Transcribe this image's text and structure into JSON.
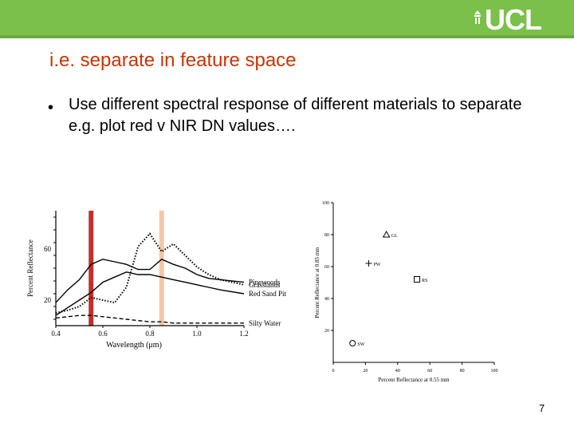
{
  "header": {
    "logo_text": "UCL",
    "colors": {
      "bar": "#7ac04a",
      "title": "#cc3300"
    }
  },
  "slide": {
    "title": "i.e. separate in feature space",
    "bullet": "Use different spectral response of different materials to separate e.g. plot red v NIR DN values….",
    "page_number": "7"
  },
  "chart_data": [
    {
      "type": "line",
      "xlabel": "Wavelength (μm)",
      "ylabel": "Percent Reflectance",
      "x_ticks": [
        "0.4",
        "0.6",
        "0.8",
        "1.0",
        "1.2"
      ],
      "y_ticks": [
        "20",
        "60"
      ],
      "xlim": [
        0.4,
        1.2
      ],
      "ylim": [
        0,
        90
      ],
      "highlight_bands": [
        {
          "x": 0.55,
          "color": "#c0302a"
        },
        {
          "x": 0.85,
          "color": "#f5c6a8"
        }
      ],
      "series": [
        {
          "name": "Pinewoods",
          "style": "solid",
          "x": [
            0.4,
            0.45,
            0.5,
            0.55,
            0.6,
            0.65,
            0.7,
            0.75,
            0.8,
            0.85,
            0.9,
            0.95,
            1.0,
            1.05,
            1.1,
            1.2
          ],
          "y": [
            18,
            28,
            36,
            48,
            52,
            50,
            48,
            44,
            44,
            52,
            48,
            45,
            40,
            37,
            36,
            34
          ]
        },
        {
          "name": "Grasslands",
          "style": "dotted",
          "x": [
            0.4,
            0.45,
            0.5,
            0.55,
            0.6,
            0.65,
            0.7,
            0.75,
            0.8,
            0.85,
            0.9,
            0.95,
            1.0,
            1.05,
            1.1,
            1.2
          ],
          "y": [
            10,
            12,
            15,
            22,
            20,
            18,
            30,
            62,
            72,
            58,
            64,
            55,
            46,
            40,
            36,
            32
          ]
        },
        {
          "name": "Red Sand Pit",
          "style": "solid",
          "x": [
            0.4,
            0.45,
            0.5,
            0.55,
            0.6,
            0.65,
            0.7,
            0.75,
            0.8,
            0.85,
            0.9,
            0.95,
            1.0,
            1.05,
            1.1,
            1.2
          ],
          "y": [
            8,
            14,
            20,
            26,
            34,
            38,
            42,
            40,
            40,
            38,
            36,
            34,
            32,
            30,
            28,
            25
          ]
        },
        {
          "name": "Silty Water",
          "style": "dashed",
          "x": [
            0.4,
            0.45,
            0.5,
            0.55,
            0.6,
            0.65,
            0.7,
            0.75,
            0.8,
            0.85,
            0.9,
            0.95,
            1.0,
            1.05,
            1.1,
            1.2
          ],
          "y": [
            6,
            7,
            8,
            8,
            7,
            6,
            5,
            4,
            3,
            3,
            2,
            2,
            2,
            2,
            2,
            2
          ]
        }
      ]
    },
    {
      "type": "scatter",
      "xlabel": "Percent Reflectance at 0.55 mm",
      "ylabel": "Percent Reflectance at 0.85 mm",
      "x_ticks": [
        "0",
        "20",
        "40",
        "60",
        "80",
        "100"
      ],
      "y_ticks": [
        "20",
        "40",
        "60",
        "80",
        "100"
      ],
      "xlim": [
        0,
        100
      ],
      "ylim": [
        0,
        100
      ],
      "points": [
        {
          "label": "GL",
          "marker": "triangle",
          "x": 33,
          "y": 80
        },
        {
          "label": "PW",
          "marker": "plus",
          "x": 22,
          "y": 62
        },
        {
          "label": "RS",
          "marker": "square",
          "x": 52,
          "y": 52
        },
        {
          "label": "SW",
          "marker": "circle",
          "x": 12,
          "y": 12
        }
      ]
    }
  ]
}
